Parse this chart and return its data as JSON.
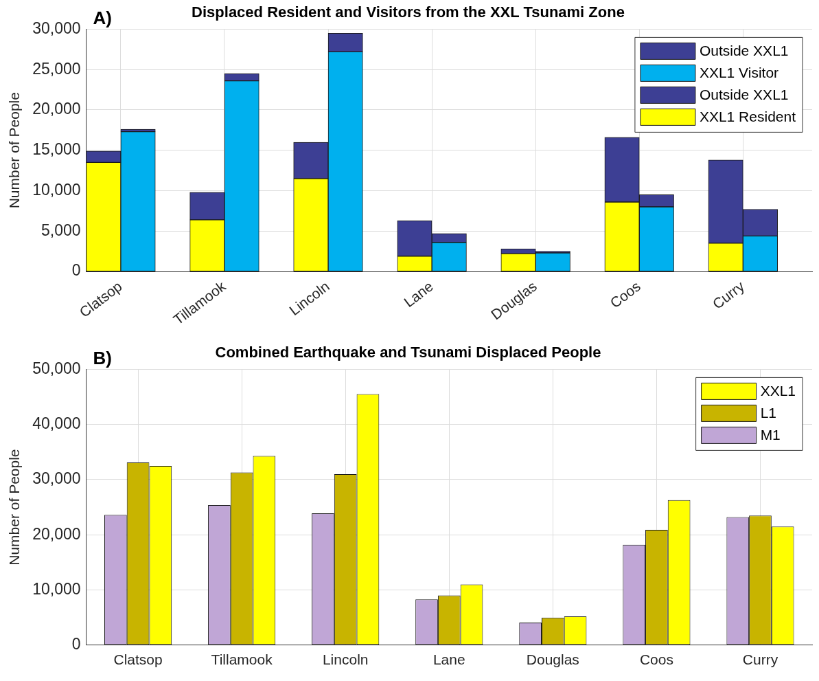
{
  "chart_data": [
    {
      "type": "bar",
      "title": "Displaced Resident and Visitors from the XXL Tsunami Zone",
      "annotations": [
        "A)"
      ],
      "ylabel": "Number of People",
      "categories": [
        "Clatsop",
        null,
        null,
        "Tillamook",
        null,
        null,
        "Lincoln",
        null,
        null,
        "Lane",
        null,
        null,
        "Douglas",
        null,
        null,
        "Coos",
        null,
        null,
        "Curry",
        null,
        null
      ],
      "stacked": true,
      "series": [
        {
          "name": "XXL1 Resident",
          "color": "#ffff00",
          "values": [
            13500,
            null,
            null,
            6400,
            null,
            null,
            11500,
            null,
            null,
            1900,
            null,
            null,
            2200,
            null,
            null,
            8600,
            null,
            null,
            3500,
            null,
            null
          ]
        },
        {
          "name": "Outside XXL1",
          "color": "#3d3f94",
          "values": [
            1400,
            null,
            null,
            3400,
            null,
            null,
            4500,
            null,
            null,
            4400,
            null,
            null,
            600,
            null,
            null,
            8000,
            null,
            null,
            10300,
            null,
            null
          ]
        },
        {
          "name": "XXL1 Visitor",
          "color": "#00b0ee",
          "values": [
            null,
            17300,
            null,
            null,
            23600,
            null,
            null,
            27200,
            null,
            null,
            3600,
            null,
            null,
            2300,
            null,
            null,
            8000,
            null,
            null,
            4400,
            null
          ]
        },
        {
          "name": "Outside XXL1",
          "color": "#3d3f94",
          "values": [
            null,
            300,
            null,
            null,
            900,
            null,
            null,
            2300,
            null,
            null,
            1100,
            null,
            null,
            200,
            null,
            null,
            1500,
            null,
            null,
            3300,
            null
          ]
        }
      ],
      "ylim": [
        0,
        30000
      ],
      "yticks": [
        {
          "value": 0,
          "label": "0"
        },
        {
          "value": 5000,
          "label": "5,000"
        },
        {
          "value": 10000,
          "label": "10,000"
        },
        {
          "value": 15000,
          "label": "15,000"
        },
        {
          "value": 20000,
          "label": "20,000"
        },
        {
          "value": 25000,
          "label": "25,000"
        },
        {
          "value": 30000,
          "label": "30,000"
        }
      ],
      "grid": true,
      "legend": "top right"
    },
    {
      "type": "bar",
      "title": "Combined Earthquake and Tsunami Displaced People",
      "annotations": [
        "B)"
      ],
      "ylabel": "Number of People",
      "categories": [
        "Clatsop",
        "Tillamook",
        "Lincoln",
        "Lane",
        "Douglas",
        "Coos",
        "Curry"
      ],
      "series": [
        {
          "name": "M1",
          "color": "#c0a6d6",
          "values": [
            23600,
            25400,
            23900,
            8300,
            4100,
            18200,
            23200
          ]
        },
        {
          "name": "L1",
          "color": "#c8b400",
          "values": [
            33100,
            31300,
            31000,
            9000,
            5000,
            20900,
            23500
          ]
        },
        {
          "name": "XXL1",
          "color": "#ffff00",
          "values": [
            32500,
            34300,
            45500,
            11000,
            5200,
            26300,
            21500
          ]
        }
      ],
      "ylim": [
        0,
        50000
      ],
      "yticks": [
        {
          "value": 0,
          "label": "0"
        },
        {
          "value": 10000,
          "label": "10,000"
        },
        {
          "value": 20000,
          "label": "20,000"
        },
        {
          "value": 30000,
          "label": "30,000"
        },
        {
          "value": 40000,
          "label": "40,000"
        },
        {
          "value": 50000,
          "label": "50,000"
        }
      ],
      "grid": true,
      "legend": "top right"
    }
  ]
}
